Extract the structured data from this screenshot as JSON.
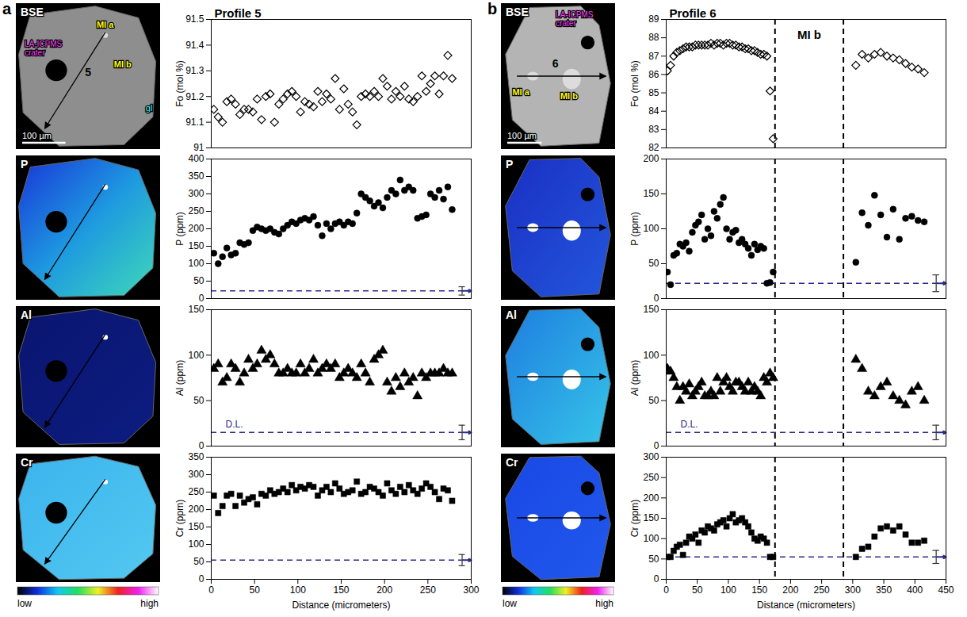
{
  "panels": [
    {
      "letter": "a",
      "bse": {
        "label": "BSE",
        "profile": "5",
        "crater": "LA-ICPMS crater",
        "inclusions": [
          "MI a",
          "MI b"
        ],
        "glass": "gl",
        "scale_bar": "100 µm"
      },
      "maps": [
        "P",
        "Al",
        "Cr"
      ],
      "colorbar": {
        "low": "low",
        "high": "high"
      }
    },
    {
      "letter": "b",
      "bse": {
        "label": "BSE",
        "profile": "6",
        "crater": "LA-ICPMS crater",
        "inclusions": [
          "MI a",
          "MI b"
        ],
        "scale_bar": "100 µm"
      },
      "maps": [
        "P",
        "Al",
        "Cr"
      ],
      "colorbar": {
        "low": "low",
        "high": "high"
      }
    }
  ],
  "chart_data": [
    {
      "type": "scatter",
      "title": "Profile 5",
      "y_label": "Fo (mol %)",
      "marker": "diamond_open",
      "color": "#000000",
      "tick_labels": "y",
      "xlim": [
        0,
        300
      ],
      "xticks": [
        0,
        50,
        100,
        150,
        200,
        250,
        300
      ],
      "ylim": [
        91,
        91.5
      ],
      "yticks": [
        91,
        91.1,
        91.2,
        91.3,
        91.4,
        91.5
      ],
      "x": [
        3,
        8,
        13,
        18,
        23,
        28,
        33,
        38,
        43,
        48,
        53,
        58,
        63,
        68,
        73,
        78,
        83,
        88,
        93,
        98,
        103,
        108,
        113,
        118,
        123,
        128,
        133,
        138,
        143,
        148,
        153,
        158,
        163,
        168,
        173,
        178,
        183,
        188,
        193,
        198,
        203,
        208,
        213,
        218,
        223,
        228,
        233,
        238,
        243,
        248,
        253,
        258,
        263,
        268,
        273,
        278
      ],
      "values": [
        91.15,
        91.12,
        91.1,
        91.18,
        91.19,
        91.17,
        91.13,
        91.15,
        91.15,
        91.14,
        91.19,
        91.11,
        91.2,
        91.21,
        91.1,
        91.17,
        91.19,
        91.21,
        91.22,
        91.2,
        91.14,
        91.18,
        91.17,
        91.16,
        91.22,
        91.18,
        91.21,
        91.19,
        91.27,
        91.15,
        91.23,
        91.17,
        91.14,
        91.09,
        91.2,
        91.21,
        91.2,
        91.22,
        91.2,
        91.27,
        91.24,
        91.19,
        91.22,
        91.2,
        91.24,
        91.19,
        91.18,
        91.2,
        91.28,
        91.22,
        91.25,
        91.28,
        91.21,
        91.28,
        91.36,
        91.27
      ]
    },
    {
      "type": "scatter",
      "y_label": "P (ppm)",
      "marker": "circle",
      "color": "#000000",
      "tick_labels": "y",
      "xlim": [
        0,
        300
      ],
      "xticks": [
        0,
        50,
        100,
        150,
        200,
        250,
        300
      ],
      "ylim": [
        0,
        400
      ],
      "yticks": [
        0,
        50,
        100,
        150,
        200,
        250,
        300,
        350,
        400
      ],
      "detection_limit": {
        "value": 22,
        "error": 12,
        "color": "#2b2b8c",
        "line_style": "dashed"
      },
      "x": [
        3,
        8,
        13,
        18,
        23,
        28,
        33,
        38,
        43,
        48,
        53,
        58,
        63,
        68,
        73,
        78,
        83,
        88,
        93,
        98,
        103,
        108,
        113,
        118,
        123,
        128,
        133,
        138,
        143,
        148,
        153,
        158,
        163,
        168,
        173,
        178,
        183,
        188,
        193,
        198,
        203,
        208,
        213,
        218,
        223,
        228,
        233,
        238,
        243,
        248,
        253,
        258,
        263,
        268,
        273,
        278
      ],
      "values": [
        130,
        100,
        120,
        145,
        125,
        130,
        160,
        155,
        160,
        195,
        205,
        200,
        195,
        200,
        190,
        185,
        200,
        210,
        220,
        215,
        225,
        230,
        225,
        235,
        210,
        180,
        215,
        200,
        215,
        220,
        210,
        220,
        215,
        245,
        300,
        290,
        280,
        265,
        275,
        260,
        290,
        310,
        300,
        340,
        310,
        320,
        310,
        230,
        235,
        240,
        300,
        290,
        310,
        285,
        320,
        255
      ]
    },
    {
      "type": "scatter",
      "y_label": "Al (ppm)",
      "marker": "triangle",
      "color": "#000000",
      "tick_labels": "y",
      "xlim": [
        0,
        300
      ],
      "xticks": [
        0,
        50,
        100,
        150,
        200,
        250,
        300
      ],
      "ylim": [
        0,
        150
      ],
      "yticks": [
        0,
        50,
        100,
        150
      ],
      "detection_limit": {
        "value": 15,
        "error": 8,
        "label": "D.L.",
        "color": "#2b2b8c",
        "line_style": "dashed"
      },
      "x": [
        3,
        8,
        13,
        18,
        23,
        28,
        33,
        38,
        43,
        48,
        53,
        58,
        63,
        68,
        73,
        78,
        83,
        88,
        93,
        98,
        103,
        108,
        113,
        118,
        123,
        128,
        133,
        138,
        143,
        148,
        153,
        158,
        163,
        168,
        173,
        178,
        183,
        188,
        193,
        198,
        203,
        208,
        213,
        218,
        223,
        228,
        233,
        238,
        243,
        248,
        253,
        258,
        263,
        268,
        273,
        278
      ],
      "values": [
        85,
        90,
        70,
        75,
        90,
        85,
        70,
        80,
        95,
        85,
        90,
        105,
        95,
        100,
        90,
        80,
        80,
        85,
        80,
        80,
        90,
        80,
        85,
        95,
        80,
        85,
        90,
        85,
        90,
        75,
        80,
        85,
        80,
        75,
        90,
        80,
        70,
        95,
        100,
        105,
        70,
        60,
        75,
        65,
        80,
        70,
        75,
        55,
        80,
        75,
        80,
        80,
        80,
        85,
        80,
        80
      ]
    },
    {
      "type": "scatter",
      "y_label": "Cr (ppm)",
      "x_label": "Distance (micrometers)",
      "marker": "square",
      "color": "#000000",
      "xlim": [
        0,
        300
      ],
      "xticks": [
        0,
        50,
        100,
        150,
        200,
        250,
        300
      ],
      "ylim": [
        0,
        350
      ],
      "yticks": [
        0,
        50,
        100,
        150,
        200,
        250,
        300,
        350
      ],
      "detection_limit": {
        "value": 55,
        "error": 16,
        "color": "#2b2b8c",
        "line_style": "dashed"
      },
      "x": [
        3,
        8,
        13,
        18,
        23,
        28,
        33,
        38,
        43,
        48,
        53,
        58,
        63,
        68,
        73,
        78,
        83,
        88,
        93,
        98,
        103,
        108,
        113,
        118,
        123,
        128,
        133,
        138,
        143,
        148,
        153,
        158,
        163,
        168,
        173,
        178,
        183,
        188,
        193,
        198,
        203,
        208,
        213,
        218,
        223,
        228,
        233,
        238,
        243,
        248,
        253,
        258,
        263,
        268,
        273,
        278
      ],
      "values": [
        240,
        190,
        210,
        240,
        245,
        210,
        240,
        220,
        230,
        235,
        215,
        245,
        240,
        255,
        245,
        250,
        260,
        250,
        270,
        255,
        265,
        260,
        270,
        265,
        240,
        255,
        265,
        250,
        275,
        260,
        245,
        250,
        255,
        280,
        245,
        250,
        265,
        260,
        250,
        240,
        275,
        255,
        245,
        265,
        250,
        270,
        255,
        245,
        260,
        275,
        265,
        250,
        230,
        260,
        255,
        225
      ]
    },
    {
      "type": "scatter",
      "title": "Profile 6",
      "y_label": "Fo (mol %)",
      "marker": "diamond_open",
      "color": "#000000",
      "tick_labels": "y",
      "xlim": [
        0,
        450
      ],
      "xticks": [
        0,
        50,
        100,
        150,
        200,
        250,
        300,
        350,
        400,
        450
      ],
      "ylim": [
        82,
        89
      ],
      "yticks": [
        82,
        83,
        84,
        85,
        86,
        87,
        88,
        89
      ],
      "melt_inclusion": {
        "bounds": [
          175,
          285
        ],
        "label": "MI b",
        "line_style": "dashed"
      },
      "x": [
        2,
        7,
        12,
        17,
        22,
        27,
        32,
        37,
        42,
        47,
        52,
        57,
        62,
        67,
        72,
        77,
        82,
        87,
        92,
        97,
        102,
        107,
        112,
        117,
        122,
        127,
        132,
        137,
        142,
        147,
        152,
        157,
        162,
        167,
        172,
        305,
        315,
        325,
        335,
        345,
        355,
        365,
        375,
        385,
        395,
        405,
        415
      ],
      "values": [
        86.2,
        86.5,
        87.0,
        87.2,
        87.3,
        87.4,
        87.5,
        87.5,
        87.5,
        87.6,
        87.6,
        87.6,
        87.6,
        87.6,
        87.7,
        87.6,
        87.7,
        87.7,
        87.6,
        87.7,
        87.7,
        87.6,
        87.6,
        87.5,
        87.5,
        87.4,
        87.4,
        87.3,
        87.3,
        87.2,
        87.1,
        87.1,
        87.0,
        85.1,
        82.5,
        86.5,
        87.1,
        86.9,
        87.1,
        87.2,
        87.0,
        86.9,
        86.8,
        86.6,
        86.4,
        86.3,
        86.1
      ]
    },
    {
      "type": "scatter",
      "y_label": "P (ppm)",
      "marker": "circle",
      "color": "#000000",
      "tick_labels": "y",
      "xlim": [
        0,
        450
      ],
      "xticks": [
        0,
        50,
        100,
        150,
        200,
        250,
        300,
        350,
        400,
        450
      ],
      "ylim": [
        0,
        200
      ],
      "yticks": [
        0,
        50,
        100,
        150,
        200
      ],
      "melt_inclusion": {
        "bounds": [
          175,
          285
        ],
        "line_style": "dashed"
      },
      "detection_limit": {
        "value": 22,
        "error": 12,
        "color": "#2b2b8c",
        "line_style": "dashed"
      },
      "x": [
        2,
        7,
        12,
        17,
        22,
        27,
        32,
        37,
        42,
        47,
        52,
        57,
        62,
        67,
        72,
        77,
        82,
        87,
        92,
        97,
        102,
        107,
        112,
        117,
        122,
        127,
        132,
        137,
        142,
        147,
        152,
        157,
        162,
        167,
        172,
        305,
        315,
        325,
        335,
        345,
        355,
        365,
        375,
        385,
        395,
        405,
        415
      ],
      "values": [
        38,
        20,
        62,
        65,
        78,
        75,
        80,
        68,
        95,
        105,
        110,
        120,
        85,
        100,
        90,
        125,
        115,
        135,
        145,
        100,
        85,
        95,
        98,
        80,
        85,
        78,
        72,
        62,
        78,
        70,
        75,
        72,
        22,
        23,
        38,
        52,
        123,
        105,
        148,
        120,
        88,
        128,
        85,
        115,
        118,
        112,
        110
      ]
    },
    {
      "type": "scatter",
      "y_label": "Al (ppm)",
      "marker": "triangle",
      "color": "#000000",
      "tick_labels": "y",
      "xlim": [
        0,
        450
      ],
      "xticks": [
        0,
        50,
        100,
        150,
        200,
        250,
        300,
        350,
        400,
        450
      ],
      "ylim": [
        0,
        150
      ],
      "yticks": [
        0,
        50,
        100,
        150
      ],
      "melt_inclusion": {
        "bounds": [
          175,
          285
        ],
        "line_style": "dashed"
      },
      "detection_limit": {
        "value": 15,
        "error": 8,
        "label": "D.L.",
        "color": "#2b2b8c",
        "line_style": "dashed"
      },
      "x": [
        2,
        7,
        12,
        17,
        22,
        27,
        32,
        37,
        42,
        47,
        52,
        57,
        62,
        67,
        72,
        77,
        82,
        87,
        92,
        97,
        102,
        107,
        112,
        117,
        122,
        127,
        132,
        137,
        142,
        147,
        152,
        157,
        162,
        167,
        172,
        305,
        315,
        325,
        335,
        345,
        355,
        365,
        375,
        385,
        395,
        405,
        415
      ],
      "values": [
        85,
        82,
        75,
        65,
        50,
        65,
        60,
        68,
        55,
        60,
        65,
        70,
        55,
        55,
        60,
        55,
        75,
        60,
        70,
        75,
        65,
        60,
        70,
        70,
        65,
        60,
        70,
        60,
        65,
        60,
        55,
        75,
        70,
        80,
        75,
        95,
        85,
        60,
        55,
        65,
        70,
        55,
        50,
        45,
        60,
        65,
        50
      ]
    },
    {
      "type": "scatter",
      "y_label": "Cr (ppm)",
      "x_label": "Distance (micrometers)",
      "marker": "square",
      "color": "#000000",
      "xlim": [
        0,
        450
      ],
      "xticks": [
        0,
        50,
        100,
        150,
        200,
        250,
        300,
        350,
        400,
        450
      ],
      "ylim": [
        0,
        300
      ],
      "yticks": [
        0,
        50,
        100,
        150,
        200,
        250,
        300
      ],
      "melt_inclusion": {
        "bounds": [
          175,
          285
        ],
        "line_style": "dashed"
      },
      "detection_limit": {
        "value": 55,
        "error": 16,
        "color": "#2b2b8c",
        "line_style": "dashed"
      },
      "x": [
        2,
        7,
        12,
        17,
        22,
        27,
        32,
        37,
        42,
        47,
        52,
        57,
        62,
        67,
        72,
        77,
        82,
        87,
        92,
        97,
        102,
        107,
        112,
        117,
        122,
        127,
        132,
        137,
        142,
        147,
        152,
        157,
        162,
        167,
        172,
        305,
        315,
        325,
        335,
        345,
        355,
        365,
        375,
        385,
        395,
        405,
        415
      ],
      "values": [
        55,
        55,
        70,
        80,
        85,
        60,
        90,
        105,
        100,
        110,
        90,
        120,
        115,
        130,
        125,
        120,
        135,
        140,
        145,
        130,
        150,
        160,
        140,
        145,
        150,
        140,
        130,
        115,
        100,
        95,
        105,
        100,
        90,
        55,
        55,
        55,
        75,
        80,
        105,
        125,
        130,
        120,
        130,
        110,
        90,
        90,
        95
      ]
    }
  ]
}
